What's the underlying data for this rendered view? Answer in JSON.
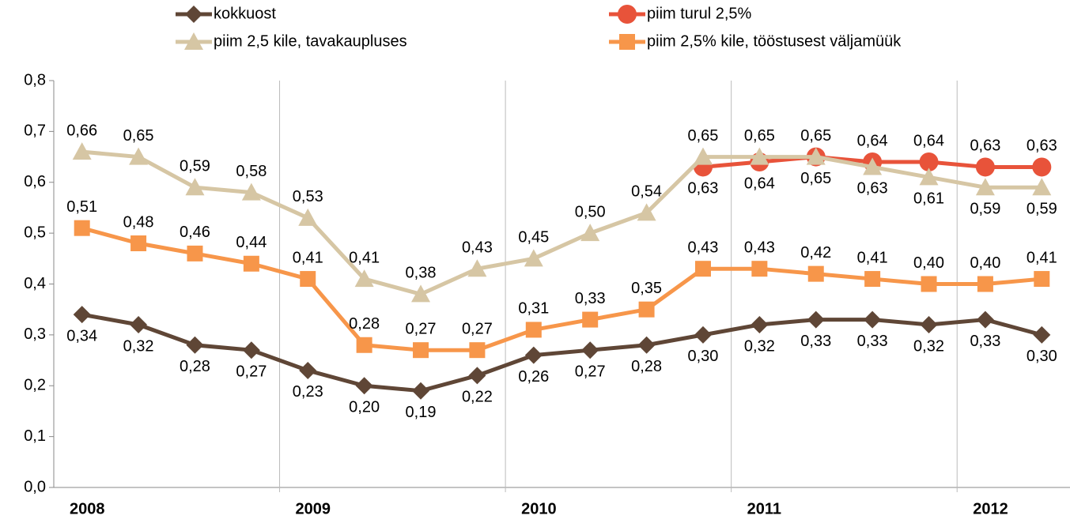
{
  "chart_data": {
    "type": "line",
    "categories": [
      "2008",
      null,
      null,
      null,
      "2009",
      null,
      null,
      null,
      "2010",
      null,
      null,
      null,
      "2011",
      null,
      null,
      null,
      "2012",
      null
    ],
    "ylim": [
      0,
      0.8
    ],
    "yticks": [
      {
        "value": 0,
        "label": "0,0"
      },
      {
        "value": 0.1,
        "label": "0,1"
      },
      {
        "value": 0.2,
        "label": "0,2"
      },
      {
        "value": 0.3,
        "label": "0,3"
      },
      {
        "value": 0.4,
        "label": "0,4"
      },
      {
        "value": 0.5,
        "label": "0,5"
      },
      {
        "value": 0.6,
        "label": "0,6"
      },
      {
        "value": 0.7,
        "label": "0,7"
      },
      {
        "value": 0.8,
        "label": "0,8"
      }
    ],
    "series": [
      {
        "name": "kokkuost",
        "color": "#5f4636",
        "marker": "diamond",
        "values": [
          0.34,
          0.32,
          0.28,
          0.27,
          0.23,
          0.2,
          0.19,
          0.22,
          0.26,
          0.27,
          0.28,
          0.3,
          0.32,
          0.33,
          0.33,
          0.32,
          0.33,
          0.3
        ],
        "value_labels": [
          "0,34",
          "0,32",
          "0,28",
          "0,27",
          "0,23",
          "0,20",
          "0,19",
          "0,22",
          "0,26",
          "0,27",
          "0,28",
          "0,30",
          "0,32",
          "0,33",
          "0,33",
          "0,32",
          "0,33",
          "0,30"
        ]
      },
      {
        "name": "piim turul 2,5%",
        "color": "#e8533a",
        "marker": "circle",
        "values": [
          null,
          null,
          null,
          null,
          null,
          null,
          null,
          null,
          null,
          null,
          null,
          0.63,
          0.64,
          0.65,
          0.64,
          0.64,
          0.63,
          0.63
        ],
        "value_labels": [
          null,
          null,
          null,
          null,
          null,
          null,
          null,
          null,
          null,
          null,
          null,
          "0,63",
          "0,64",
          "0,65",
          "0,64",
          "0,64",
          "0,63",
          "0,63"
        ]
      },
      {
        "name": "piim 2,5 kile, tavakaupluses",
        "color": "#d6c6a4",
        "marker": "triangle",
        "values": [
          0.66,
          0.65,
          0.59,
          0.58,
          0.53,
          0.41,
          0.38,
          0.43,
          0.45,
          0.5,
          0.54,
          0.65,
          0.65,
          0.65,
          0.63,
          0.61,
          0.59,
          0.59
        ],
        "value_labels": [
          "0,66",
          "0,65",
          "0,59",
          "0,58",
          "0,53",
          "0,41",
          "0,38",
          "0,43",
          "0,45",
          "0,50",
          "0,54",
          "0,65",
          "0,65",
          "0,65",
          "0,63",
          "0,61",
          "0,59",
          "0,59"
        ]
      },
      {
        "name": "piim 2,5% kile, tööstusest väljamüük",
        "color": "#f7964a",
        "marker": "square",
        "values": [
          0.51,
          0.48,
          0.46,
          0.44,
          0.41,
          0.28,
          0.27,
          0.27,
          0.31,
          0.33,
          0.35,
          0.43,
          0.43,
          0.42,
          0.41,
          0.4,
          0.4,
          0.41
        ],
        "value_labels": [
          "0,51",
          "0,48",
          "0,46",
          "0,44",
          "0,41",
          "0,28",
          "0,27",
          "0,27",
          "0,31",
          "0,33",
          "0,35",
          "0,43",
          "0,43",
          "0,42",
          "0,41",
          "0,40",
          "0,40",
          "0,41"
        ]
      }
    ]
  }
}
